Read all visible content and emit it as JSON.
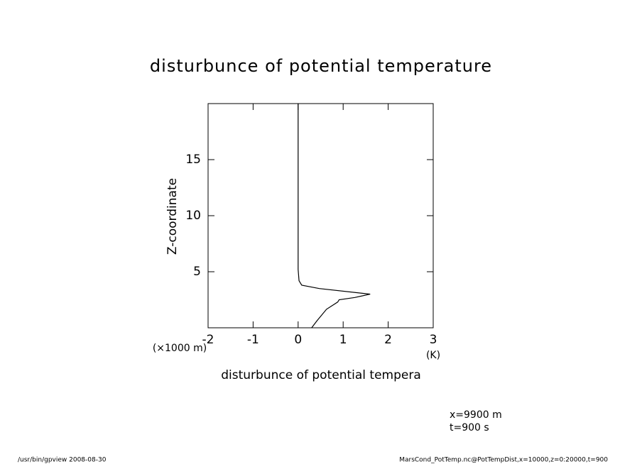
{
  "chart_data": {
    "type": "line",
    "title": "disturbunce of potential temperature",
    "x_label": "disturbunce of potential tempera",
    "x_unit": "(K)",
    "y_label": "Z-coordinate",
    "y_unit": "(×1000 m)",
    "annotations": [
      "x=9900 m",
      "t=900 s"
    ],
    "footer_left": "/usr/bin/gpview  2008-08-30",
    "footer_right": "MarsCond_PotTemp.nc@PotTempDist,x=10000,z=0:20000,t=900",
    "x": [
      0.3,
      0.42,
      0.63,
      0.88,
      0.91,
      1.26,
      1.6,
      0.47,
      0.08,
      0.02,
      0,
      0
    ],
    "values": [
      0,
      0.63,
      1.65,
      2.3,
      2.5,
      2.7,
      3.0,
      3.5,
      3.8,
      4.2,
      5.2,
      20
    ],
    "color": "#000000",
    "xlim": [
      -2,
      3
    ],
    "xticks": [
      -2,
      -1,
      0,
      1,
      2,
      3
    ],
    "ylim": [
      0,
      20
    ],
    "yticks": [
      5,
      10,
      15
    ]
  }
}
